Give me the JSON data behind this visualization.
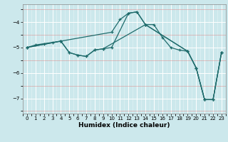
{
  "xlabel": "Humidex (Indice chaleur)",
  "bg_color": "#cce8ec",
  "line_color": "#1e6b6b",
  "xlim": [
    -0.5,
    23.5
  ],
  "ylim": [
    -7.6,
    -3.3
  ],
  "yticks": [
    -7,
    -6,
    -5,
    -4
  ],
  "xtick_labels": [
    "0",
    "1",
    "2",
    "3",
    "4",
    "5",
    "6",
    "7",
    "8",
    "9",
    "10",
    "11",
    "12",
    "13",
    "14",
    "15",
    "16",
    "17",
    "18",
    "19",
    "20",
    "21",
    "22",
    "23"
  ],
  "xticks": [
    0,
    1,
    2,
    3,
    4,
    5,
    6,
    7,
    8,
    9,
    10,
    11,
    12,
    13,
    14,
    15,
    16,
    17,
    18,
    19,
    20,
    21,
    22,
    23
  ],
  "series": [
    {
      "x": [
        0,
        1,
        2,
        3,
        4,
        10,
        11,
        12,
        13,
        14,
        15,
        16,
        17,
        18,
        19,
        20,
        21,
        22,
        23
      ],
      "y": [
        -5.0,
        -4.9,
        -4.85,
        -4.8,
        -4.75,
        -4.4,
        -3.9,
        -3.65,
        -3.6,
        -4.1,
        -4.1,
        -4.6,
        -5.0,
        -5.1,
        -5.15,
        -5.8,
        -7.05,
        -7.05,
        -5.2
      ]
    },
    {
      "x": [
        0,
        4,
        5,
        6,
        7,
        8,
        9,
        10,
        12,
        13,
        14,
        19,
        20,
        21,
        22,
        23
      ],
      "y": [
        -5.0,
        -4.75,
        -5.2,
        -5.3,
        -5.35,
        -5.1,
        -5.05,
        -5.0,
        -3.65,
        -3.6,
        -4.1,
        -5.15,
        -5.8,
        -7.05,
        -7.05,
        -5.2
      ]
    },
    {
      "x": [
        0,
        4,
        5,
        6,
        7,
        8,
        9,
        14,
        19,
        20,
        21,
        22,
        23
      ],
      "y": [
        -5.0,
        -4.75,
        -5.2,
        -5.3,
        -5.35,
        -5.1,
        -5.05,
        -4.1,
        -5.15,
        -5.8,
        -7.05,
        -7.05,
        -5.2
      ]
    }
  ]
}
